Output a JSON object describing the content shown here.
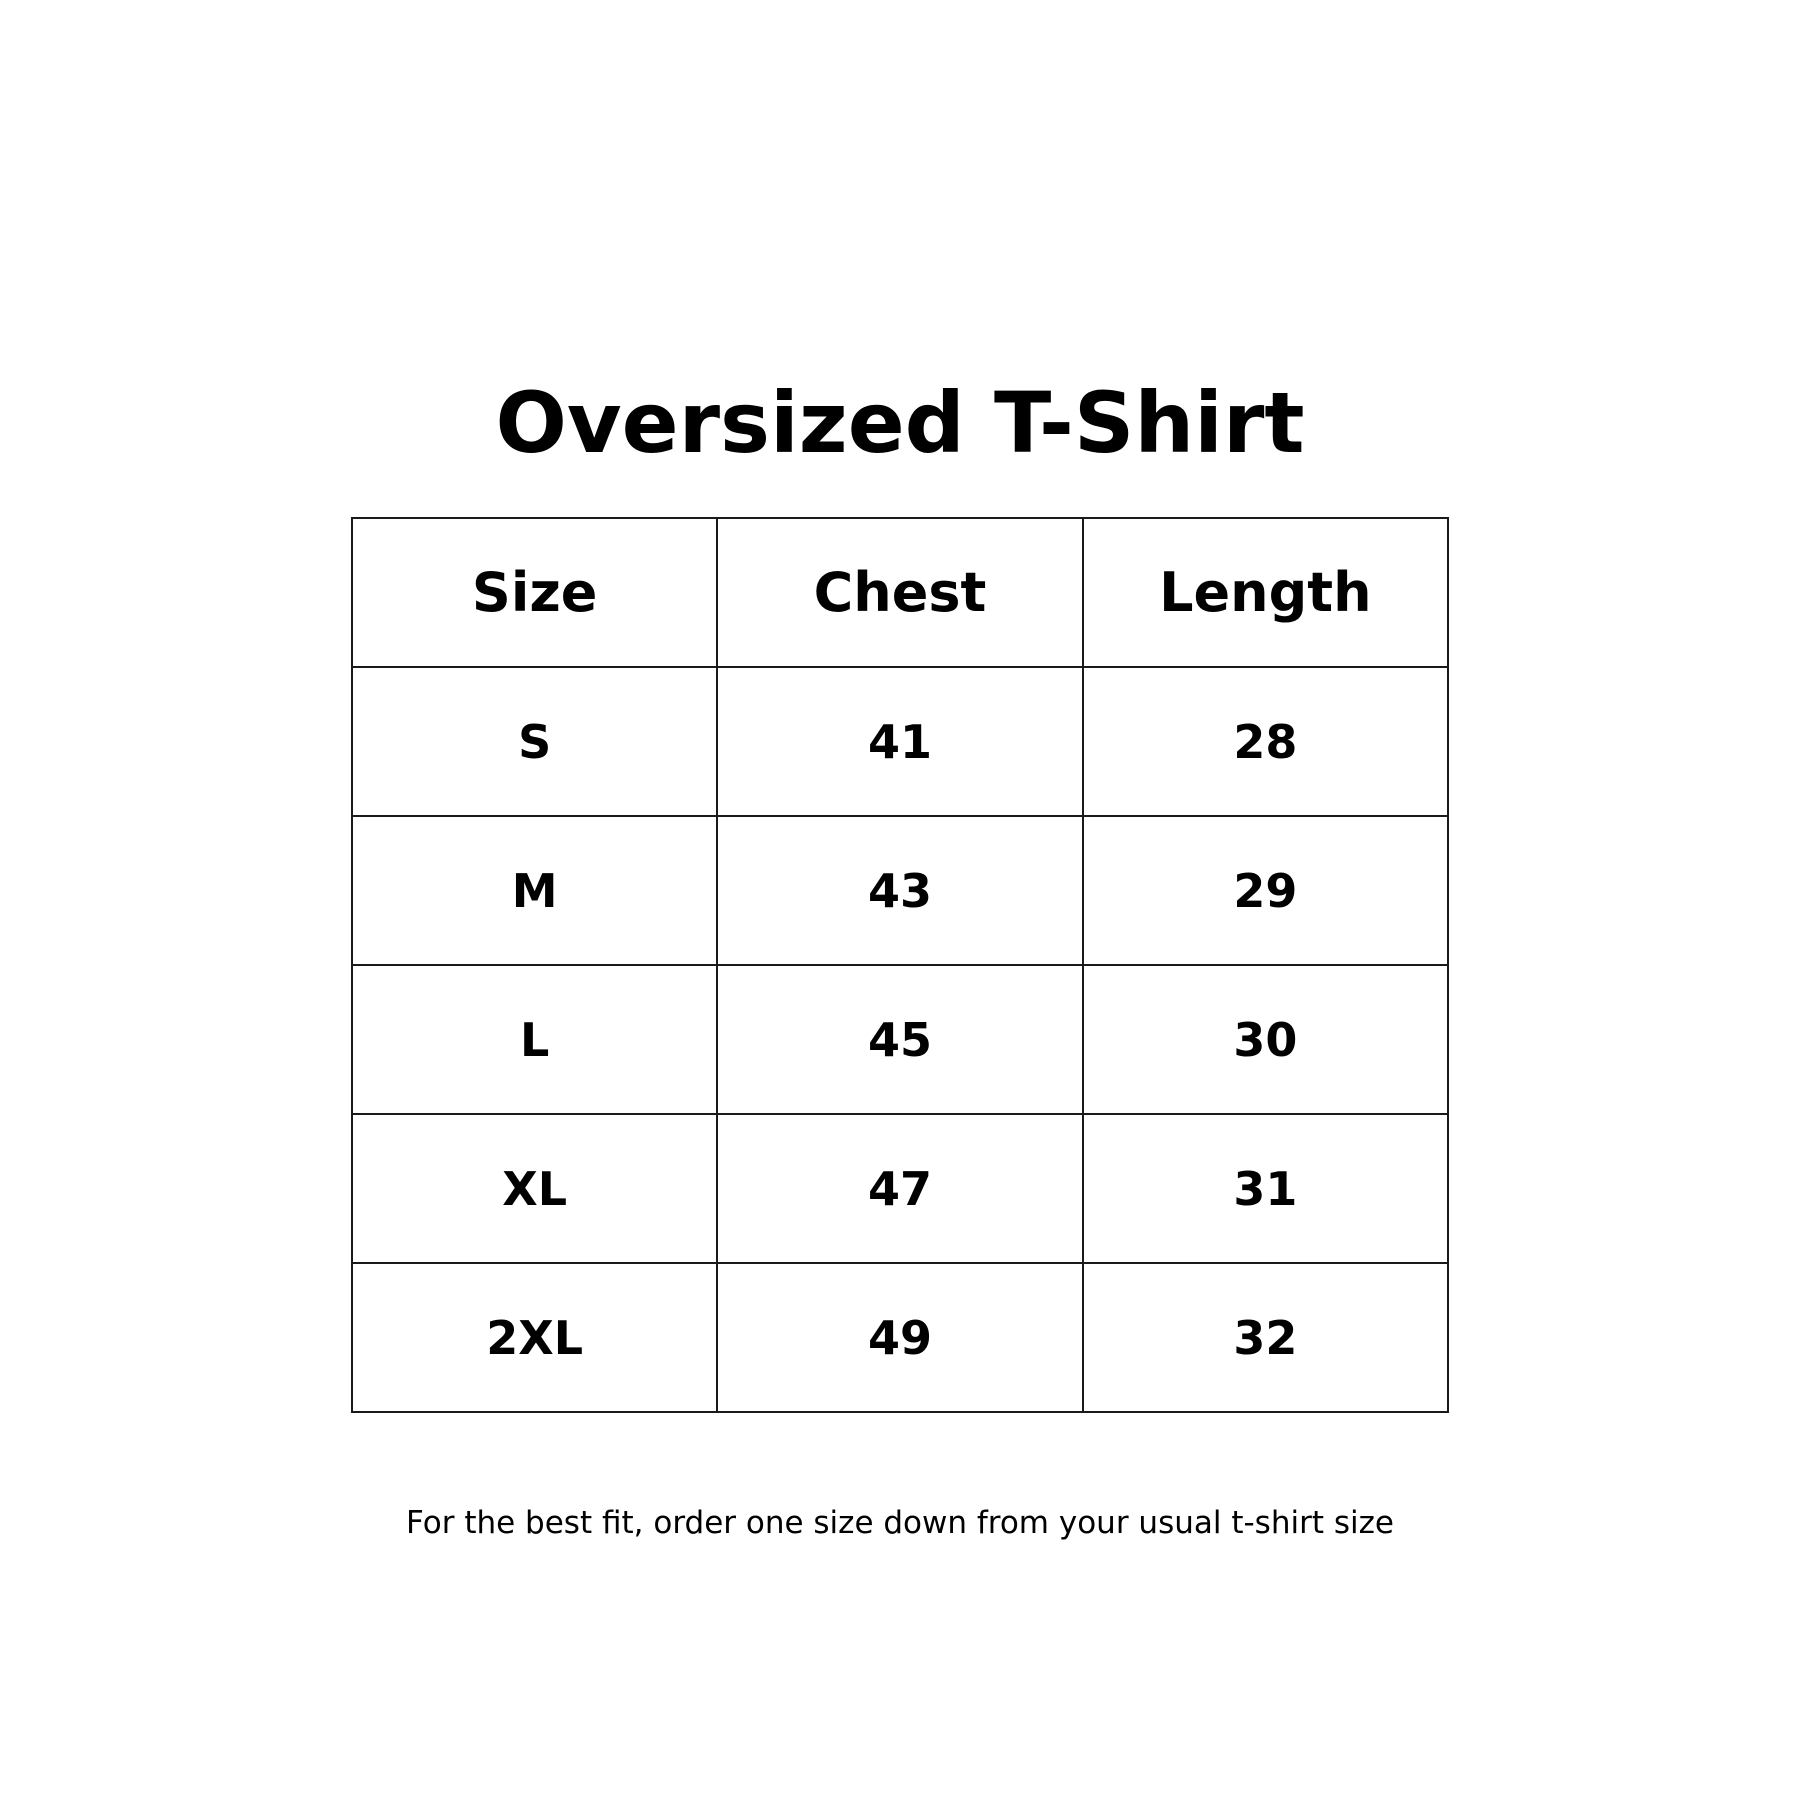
{
  "title": "Oversized T-Shirt",
  "table": {
    "headers": [
      "Size",
      "Chest",
      "Length"
    ],
    "rows": [
      [
        "S",
        "41",
        "28"
      ],
      [
        "M",
        "43",
        "29"
      ],
      [
        "L",
        "45",
        "30"
      ],
      [
        "XL",
        "47",
        "31"
      ],
      [
        "2XL",
        "49",
        "32"
      ]
    ]
  },
  "footer_note": "For the best fit, order one size down from your usual t-shirt size"
}
